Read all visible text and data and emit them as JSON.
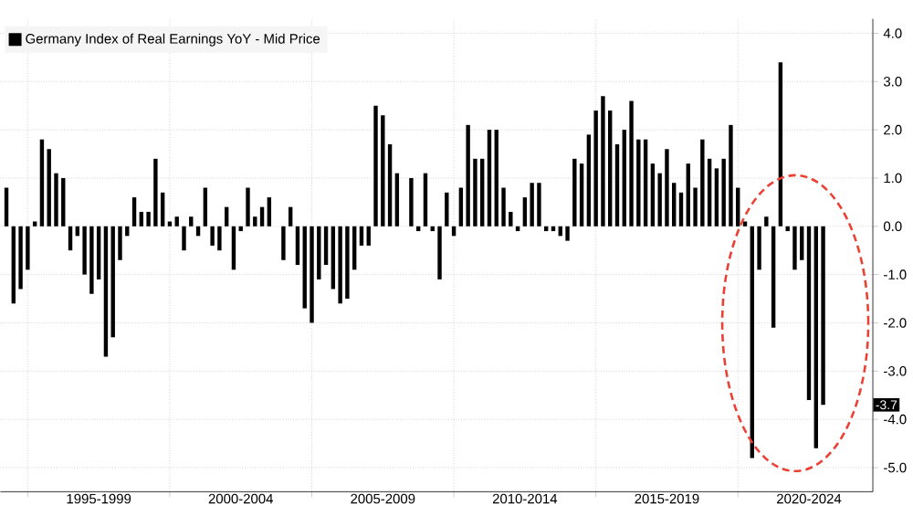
{
  "chart_data": {
    "type": "bar",
    "categories": [
      null,
      null,
      null,
      null,
      null,
      null,
      null,
      null,
      null,
      null,
      null,
      null,
      null,
      "1995-1999",
      null,
      null,
      null,
      null,
      null,
      null,
      null,
      null,
      null,
      null,
      null,
      null,
      null,
      null,
      null,
      null,
      null,
      null,
      null,
      "2000-2004",
      null,
      null,
      null,
      null,
      null,
      null,
      null,
      null,
      null,
      null,
      null,
      null,
      null,
      null,
      null,
      null,
      null,
      null,
      null,
      "2005-2009",
      null,
      null,
      null,
      null,
      null,
      null,
      null,
      null,
      null,
      null,
      null,
      null,
      null,
      null,
      null,
      null,
      null,
      null,
      null,
      "2010-2014",
      null,
      null,
      null,
      null,
      null,
      null,
      null,
      null,
      null,
      null,
      null,
      null,
      null,
      null,
      null,
      null,
      null,
      null,
      null,
      "2015-2019",
      null,
      null,
      null,
      null,
      null,
      null,
      null,
      null,
      null,
      null,
      null,
      null,
      null,
      null,
      null,
      null,
      null,
      null,
      null,
      "2020-2024",
      null,
      null
    ],
    "series": [
      {
        "name": "Germany Index of Real Earnings YoY - Mid Price",
        "color": "#000000",
        "values": [
          0.8,
          -1.6,
          -1.3,
          -0.9,
          0.1,
          1.8,
          1.6,
          1.1,
          1.0,
          -0.5,
          -0.2,
          -1.0,
          -1.4,
          -1.1,
          -2.7,
          -2.3,
          -0.7,
          -0.2,
          0.6,
          0.3,
          0.3,
          1.4,
          0.7,
          0.1,
          0.2,
          -0.5,
          0.2,
          -0.2,
          0.8,
          -0.4,
          -0.5,
          0.4,
          -0.9,
          -0.1,
          0.8,
          0.2,
          0.4,
          0.6,
          0.0,
          -0.7,
          0.4,
          -0.8,
          -1.7,
          -2.0,
          -1.1,
          -0.8,
          -1.3,
          -1.6,
          -1.5,
          -0.9,
          -0.4,
          -0.4,
          2.5,
          2.3,
          1.7,
          1.1,
          0.0,
          1.0,
          -0.1,
          1.1,
          -0.1,
          -1.1,
          0.7,
          -0.2,
          0.8,
          2.1,
          1.4,
          1.4,
          2.0,
          2.0,
          0.8,
          0.3,
          -0.1,
          0.6,
          0.9,
          0.9,
          -0.1,
          -0.1,
          -0.2,
          -0.3,
          1.4,
          1.3,
          1.9,
          2.4,
          2.7,
          2.4,
          1.7,
          2.0,
          2.6,
          1.8,
          1.8,
          1.3,
          1.1,
          1.6,
          0.9,
          0.7,
          1.3,
          0.8,
          1.8,
          1.4,
          1.2,
          1.4,
          2.1,
          0.8,
          0.1,
          -4.8,
          -0.9,
          0.2,
          -2.1,
          3.4,
          -0.1,
          -0.9,
          -0.7,
          -3.6,
          -4.6,
          -3.7
        ]
      }
    ],
    "ylim": [
      -5.5,
      4.3
    ],
    "yticks": [
      {
        "value": -5,
        "label": "-5.0"
      },
      {
        "value": -4,
        "label": "-4.0"
      },
      {
        "value": -3,
        "label": "-3.0"
      },
      {
        "value": -2,
        "label": "-2.0"
      },
      {
        "value": -1,
        "label": "-1.0"
      },
      {
        "value": 0,
        "label": "0.0"
      },
      {
        "value": 1,
        "label": "1.0"
      },
      {
        "value": 2,
        "label": "2.0"
      },
      {
        "value": 3,
        "label": "3.0"
      },
      {
        "value": 4,
        "label": "4.0"
      }
    ],
    "annotations": [
      "-3.7"
    ],
    "grid": true,
    "legend": "top left"
  }
}
